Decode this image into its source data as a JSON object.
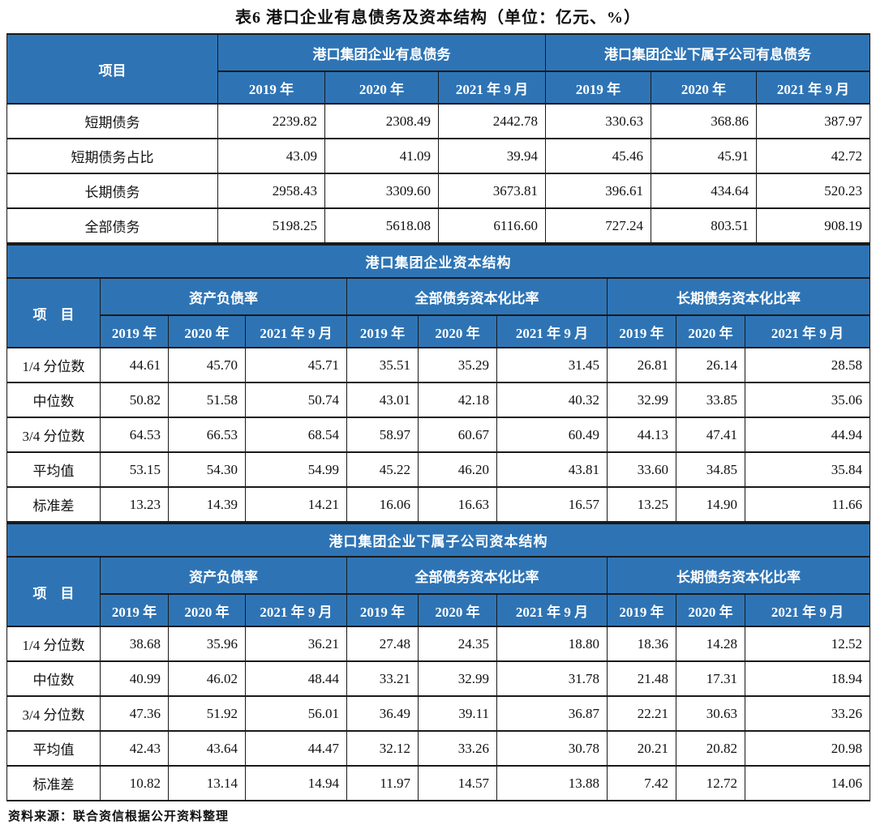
{
  "title": "表6  港口企业有息债务及资本结构（单位：亿元、%）",
  "source_note": "资料来源：联合资信根据公开资料整理",
  "colors": {
    "header_blue": "#2e74b5",
    "header_text": "#ffffff",
    "border": "#1a1a1a"
  },
  "debt_table": {
    "item_header": "项目",
    "groups": [
      {
        "label": "港口集团企业有息债务",
        "years": [
          "2019 年",
          "2020 年",
          "2021 年 9 月"
        ]
      },
      {
        "label": "港口集团企业下属子公司有息债务",
        "years": [
          "2019 年",
          "2020 年",
          "2021 年 9 月"
        ]
      }
    ],
    "rows": [
      {
        "label": "短期债务",
        "values": [
          "2239.82",
          "2308.49",
          "2442.78",
          "330.63",
          "368.86",
          "387.97"
        ]
      },
      {
        "label": "短期债务占比",
        "values": [
          "43.09",
          "41.09",
          "39.94",
          "45.46",
          "45.91",
          "42.72"
        ]
      },
      {
        "label": "长期债务",
        "values": [
          "2958.43",
          "3309.60",
          "3673.81",
          "396.61",
          "434.64",
          "520.23"
        ]
      },
      {
        "label": "全部债务",
        "values": [
          "5198.25",
          "5618.08",
          "6116.60",
          "727.24",
          "803.51",
          "908.19"
        ]
      }
    ]
  },
  "capital_tables": [
    {
      "section_title": "港口集团企业资本结构",
      "item_header": "项　目",
      "groups": [
        {
          "label": "资产负债率",
          "years": [
            "2019 年",
            "2020 年",
            "2021 年 9 月"
          ]
        },
        {
          "label": "全部债务资本化比率",
          "years": [
            "2019 年",
            "2020 年",
            "2021 年 9 月"
          ]
        },
        {
          "label": "长期债务资本化比率",
          "years": [
            "2019 年",
            "2020 年",
            "2021 年 9 月"
          ]
        }
      ],
      "rows": [
        {
          "label": "1/4 分位数",
          "values": [
            "44.61",
            "45.70",
            "45.71",
            "35.51",
            "35.29",
            "31.45",
            "26.81",
            "26.14",
            "28.58"
          ]
        },
        {
          "label": "中位数",
          "values": [
            "50.82",
            "51.58",
            "50.74",
            "43.01",
            "42.18",
            "40.32",
            "32.99",
            "33.85",
            "35.06"
          ]
        },
        {
          "label": "3/4 分位数",
          "values": [
            "64.53",
            "66.53",
            "68.54",
            "58.97",
            "60.67",
            "60.49",
            "44.13",
            "47.41",
            "44.94"
          ]
        },
        {
          "label": "平均值",
          "values": [
            "53.15",
            "54.30",
            "54.99",
            "45.22",
            "46.20",
            "43.81",
            "33.60",
            "34.85",
            "35.84"
          ]
        },
        {
          "label": "标准差",
          "values": [
            "13.23",
            "14.39",
            "14.21",
            "16.06",
            "16.63",
            "16.57",
            "13.25",
            "14.90",
            "11.66"
          ]
        }
      ]
    },
    {
      "section_title": "港口集团企业下属子公司资本结构",
      "item_header": "项　目",
      "groups": [
        {
          "label": "资产负债率",
          "years": [
            "2019 年",
            "2020 年",
            "2021 年 9 月"
          ]
        },
        {
          "label": "全部债务资本化比率",
          "years": [
            "2019 年",
            "2020 年",
            "2021 年 9 月"
          ]
        },
        {
          "label": "长期债务资本化比率",
          "years": [
            "2019 年",
            "2020 年",
            "2021 年 9 月"
          ]
        }
      ],
      "rows": [
        {
          "label": "1/4 分位数",
          "values": [
            "38.68",
            "35.96",
            "36.21",
            "27.48",
            "24.35",
            "18.80",
            "18.36",
            "14.28",
            "12.52"
          ]
        },
        {
          "label": "中位数",
          "values": [
            "40.99",
            "46.02",
            "48.44",
            "33.21",
            "32.99",
            "31.78",
            "21.48",
            "17.31",
            "18.94"
          ]
        },
        {
          "label": "3/4 分位数",
          "values": [
            "47.36",
            "51.92",
            "56.01",
            "36.49",
            "39.11",
            "36.87",
            "22.21",
            "30.63",
            "33.26"
          ]
        },
        {
          "label": "平均值",
          "values": [
            "42.43",
            "43.64",
            "44.47",
            "32.12",
            "33.26",
            "30.78",
            "20.21",
            "20.82",
            "20.98"
          ]
        },
        {
          "label": "标准差",
          "values": [
            "10.82",
            "13.14",
            "14.94",
            "11.97",
            "14.57",
            "13.88",
            "7.42",
            "12.72",
            "14.06"
          ]
        }
      ]
    }
  ]
}
